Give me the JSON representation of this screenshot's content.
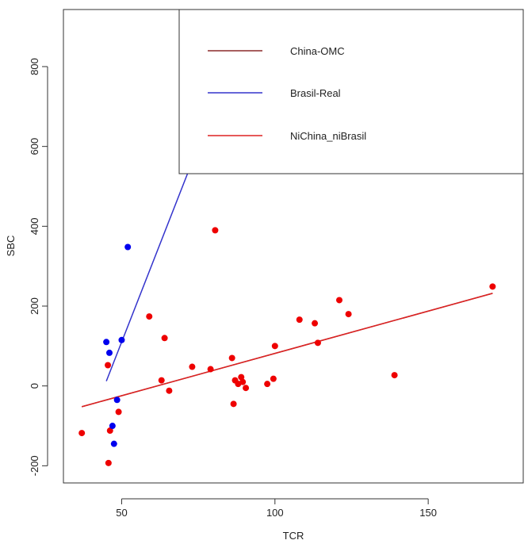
{
  "chart_data": {
    "type": "scatter",
    "xlabel": "TCR",
    "ylabel": "SBC",
    "xlim": [
      31,
      181
    ],
    "ylim": [
      -243,
      943
    ],
    "x_ticks": [
      50,
      100,
      150
    ],
    "y_ticks": [
      -200,
      0,
      200,
      400,
      600,
      800
    ],
    "grid": false,
    "legend_position": "top-right",
    "points": {
      "red": [
        [
          37,
          -118
        ],
        [
          45.5,
          52
        ],
        [
          46.2,
          -112
        ],
        [
          45.7,
          -193
        ],
        [
          49,
          -65
        ],
        [
          59,
          174
        ],
        [
          63,
          14
        ],
        [
          64,
          120
        ],
        [
          65.5,
          -12
        ],
        [
          73,
          48
        ],
        [
          79,
          42
        ],
        [
          80.5,
          390
        ],
        [
          86,
          70
        ],
        [
          86.5,
          -45
        ],
        [
          87,
          14
        ],
        [
          88,
          5
        ],
        [
          89,
          22
        ],
        [
          89.5,
          10
        ],
        [
          90.5,
          -5
        ],
        [
          97.5,
          5
        ],
        [
          99.5,
          18
        ],
        [
          100,
          100
        ],
        [
          108,
          166
        ],
        [
          113,
          157
        ],
        [
          114,
          108
        ],
        [
          121,
          215
        ],
        [
          124,
          180
        ],
        [
          139,
          27
        ],
        [
          171,
          249
        ]
      ],
      "blue": [
        [
          45,
          110
        ],
        [
          46,
          83
        ],
        [
          50,
          115
        ],
        [
          52,
          348
        ],
        [
          47,
          -100
        ],
        [
          47.5,
          -145
        ],
        [
          48.5,
          -35
        ]
      ]
    },
    "colors": {
      "red": "#ee0000",
      "blue": "#0000ee"
    },
    "series": [
      {
        "name": "China-OMC",
        "color": "#8b2a2a",
        "x": [
          37,
          171
        ],
        "y": [
          -52,
          232
        ]
      },
      {
        "name": "Brasil-Real",
        "color": "#3333cc",
        "x": [
          45,
          72
        ],
        "y": [
          12,
          542
        ]
      },
      {
        "name": "NiChina_niBrasil",
        "color": "#dd2222",
        "x": [
          37,
          171
        ],
        "y": [
          -52,
          232
        ]
      }
    ]
  }
}
